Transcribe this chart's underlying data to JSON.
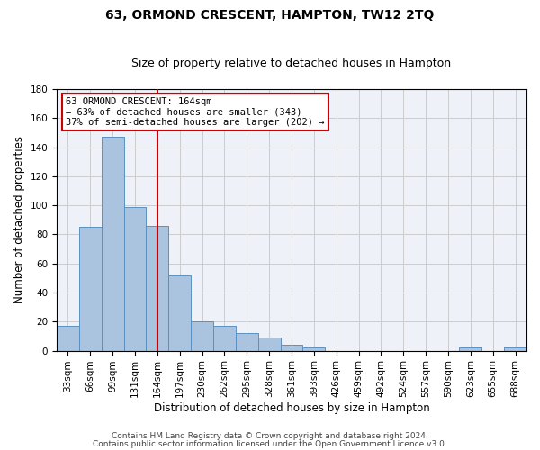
{
  "title": "63, ORMOND CRESCENT, HAMPTON, TW12 2TQ",
  "subtitle": "Size of property relative to detached houses in Hampton",
  "xlabel": "Distribution of detached houses by size in Hampton",
  "ylabel": "Number of detached properties",
  "bar_labels": [
    "33sqm",
    "66sqm",
    "99sqm",
    "131sqm",
    "164sqm",
    "197sqm",
    "230sqm",
    "262sqm",
    "295sqm",
    "328sqm",
    "361sqm",
    "393sqm",
    "426sqm",
    "459sqm",
    "492sqm",
    "524sqm",
    "557sqm",
    "590sqm",
    "623sqm",
    "655sqm",
    "688sqm"
  ],
  "bar_values": [
    17,
    85,
    147,
    99,
    86,
    52,
    20,
    17,
    12,
    9,
    4,
    2,
    0,
    0,
    0,
    0,
    0,
    0,
    2,
    0,
    2
  ],
  "bar_color": "#aac4e0",
  "bar_edge_color": "#5a90c0",
  "vline_x_idx": 4,
  "vline_color": "#cc0000",
  "ylim": [
    0,
    180
  ],
  "yticks": [
    0,
    20,
    40,
    60,
    80,
    100,
    120,
    140,
    160,
    180
  ],
  "annotation_line1": "63 ORMOND CRESCENT: 164sqm",
  "annotation_line2": "← 63% of detached houses are smaller (343)",
  "annotation_line3": "37% of semi-detached houses are larger (202) →",
  "annotation_box_color": "#ffffff",
  "annotation_box_edge": "#cc0000",
  "footer1": "Contains HM Land Registry data © Crown copyright and database right 2024.",
  "footer2": "Contains public sector information licensed under the Open Government Licence v3.0.",
  "bg_color": "#eef2f8",
  "grid_color": "#cccccc",
  "title_fontsize": 10,
  "subtitle_fontsize": 9,
  "axis_label_fontsize": 8.5,
  "tick_fontsize": 7.5,
  "footer_fontsize": 6.5,
  "annotation_fontsize": 7.5
}
